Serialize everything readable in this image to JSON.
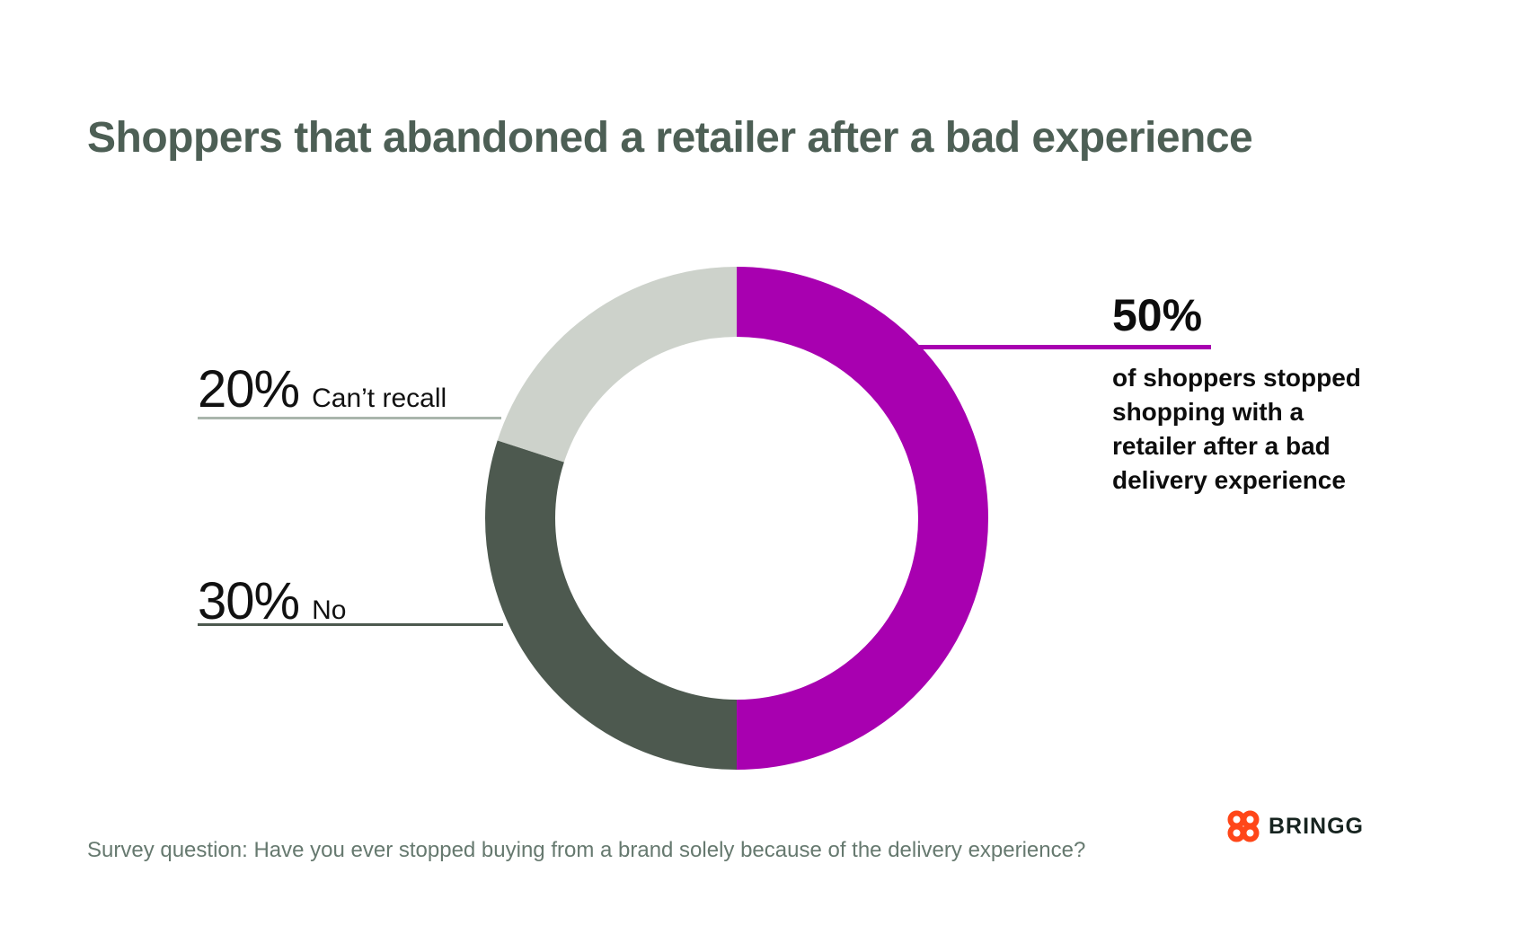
{
  "page": {
    "title": "Shoppers that abandoned a retailer after a bad experience"
  },
  "chart_data": {
    "type": "pie",
    "subtype": "donut",
    "title": "Shoppers that abandoned a retailer after a bad experience",
    "start_angle_deg": 0,
    "direction": "clockwise",
    "slices": [
      {
        "label": "Yes — stopped shopping after a bad delivery experience",
        "value": 50,
        "color": "#A800B0"
      },
      {
        "label": "No",
        "value": 30,
        "color": "#4D594F"
      },
      {
        "label": "Can’t recall",
        "value": 20,
        "color": "#CDD2CB"
      }
    ]
  },
  "callouts": {
    "yes": {
      "pct": "50%",
      "description": "of shoppers stopped shopping with a retailer after a bad delivery experience",
      "line_color": "#A800B0"
    },
    "cant_recall": {
      "pct": "20%",
      "label": "Can’t recall",
      "line_color": "#A9B5AC"
    },
    "no": {
      "pct": "30%",
      "label": "No",
      "line_color": "#4D594F"
    }
  },
  "footnote": "Survey question: Have you ever stopped buying from a brand solely because of the delivery experience?",
  "brand": {
    "name": "BRINGG",
    "icon_color": "#FF4719",
    "text_color": "#172420"
  }
}
